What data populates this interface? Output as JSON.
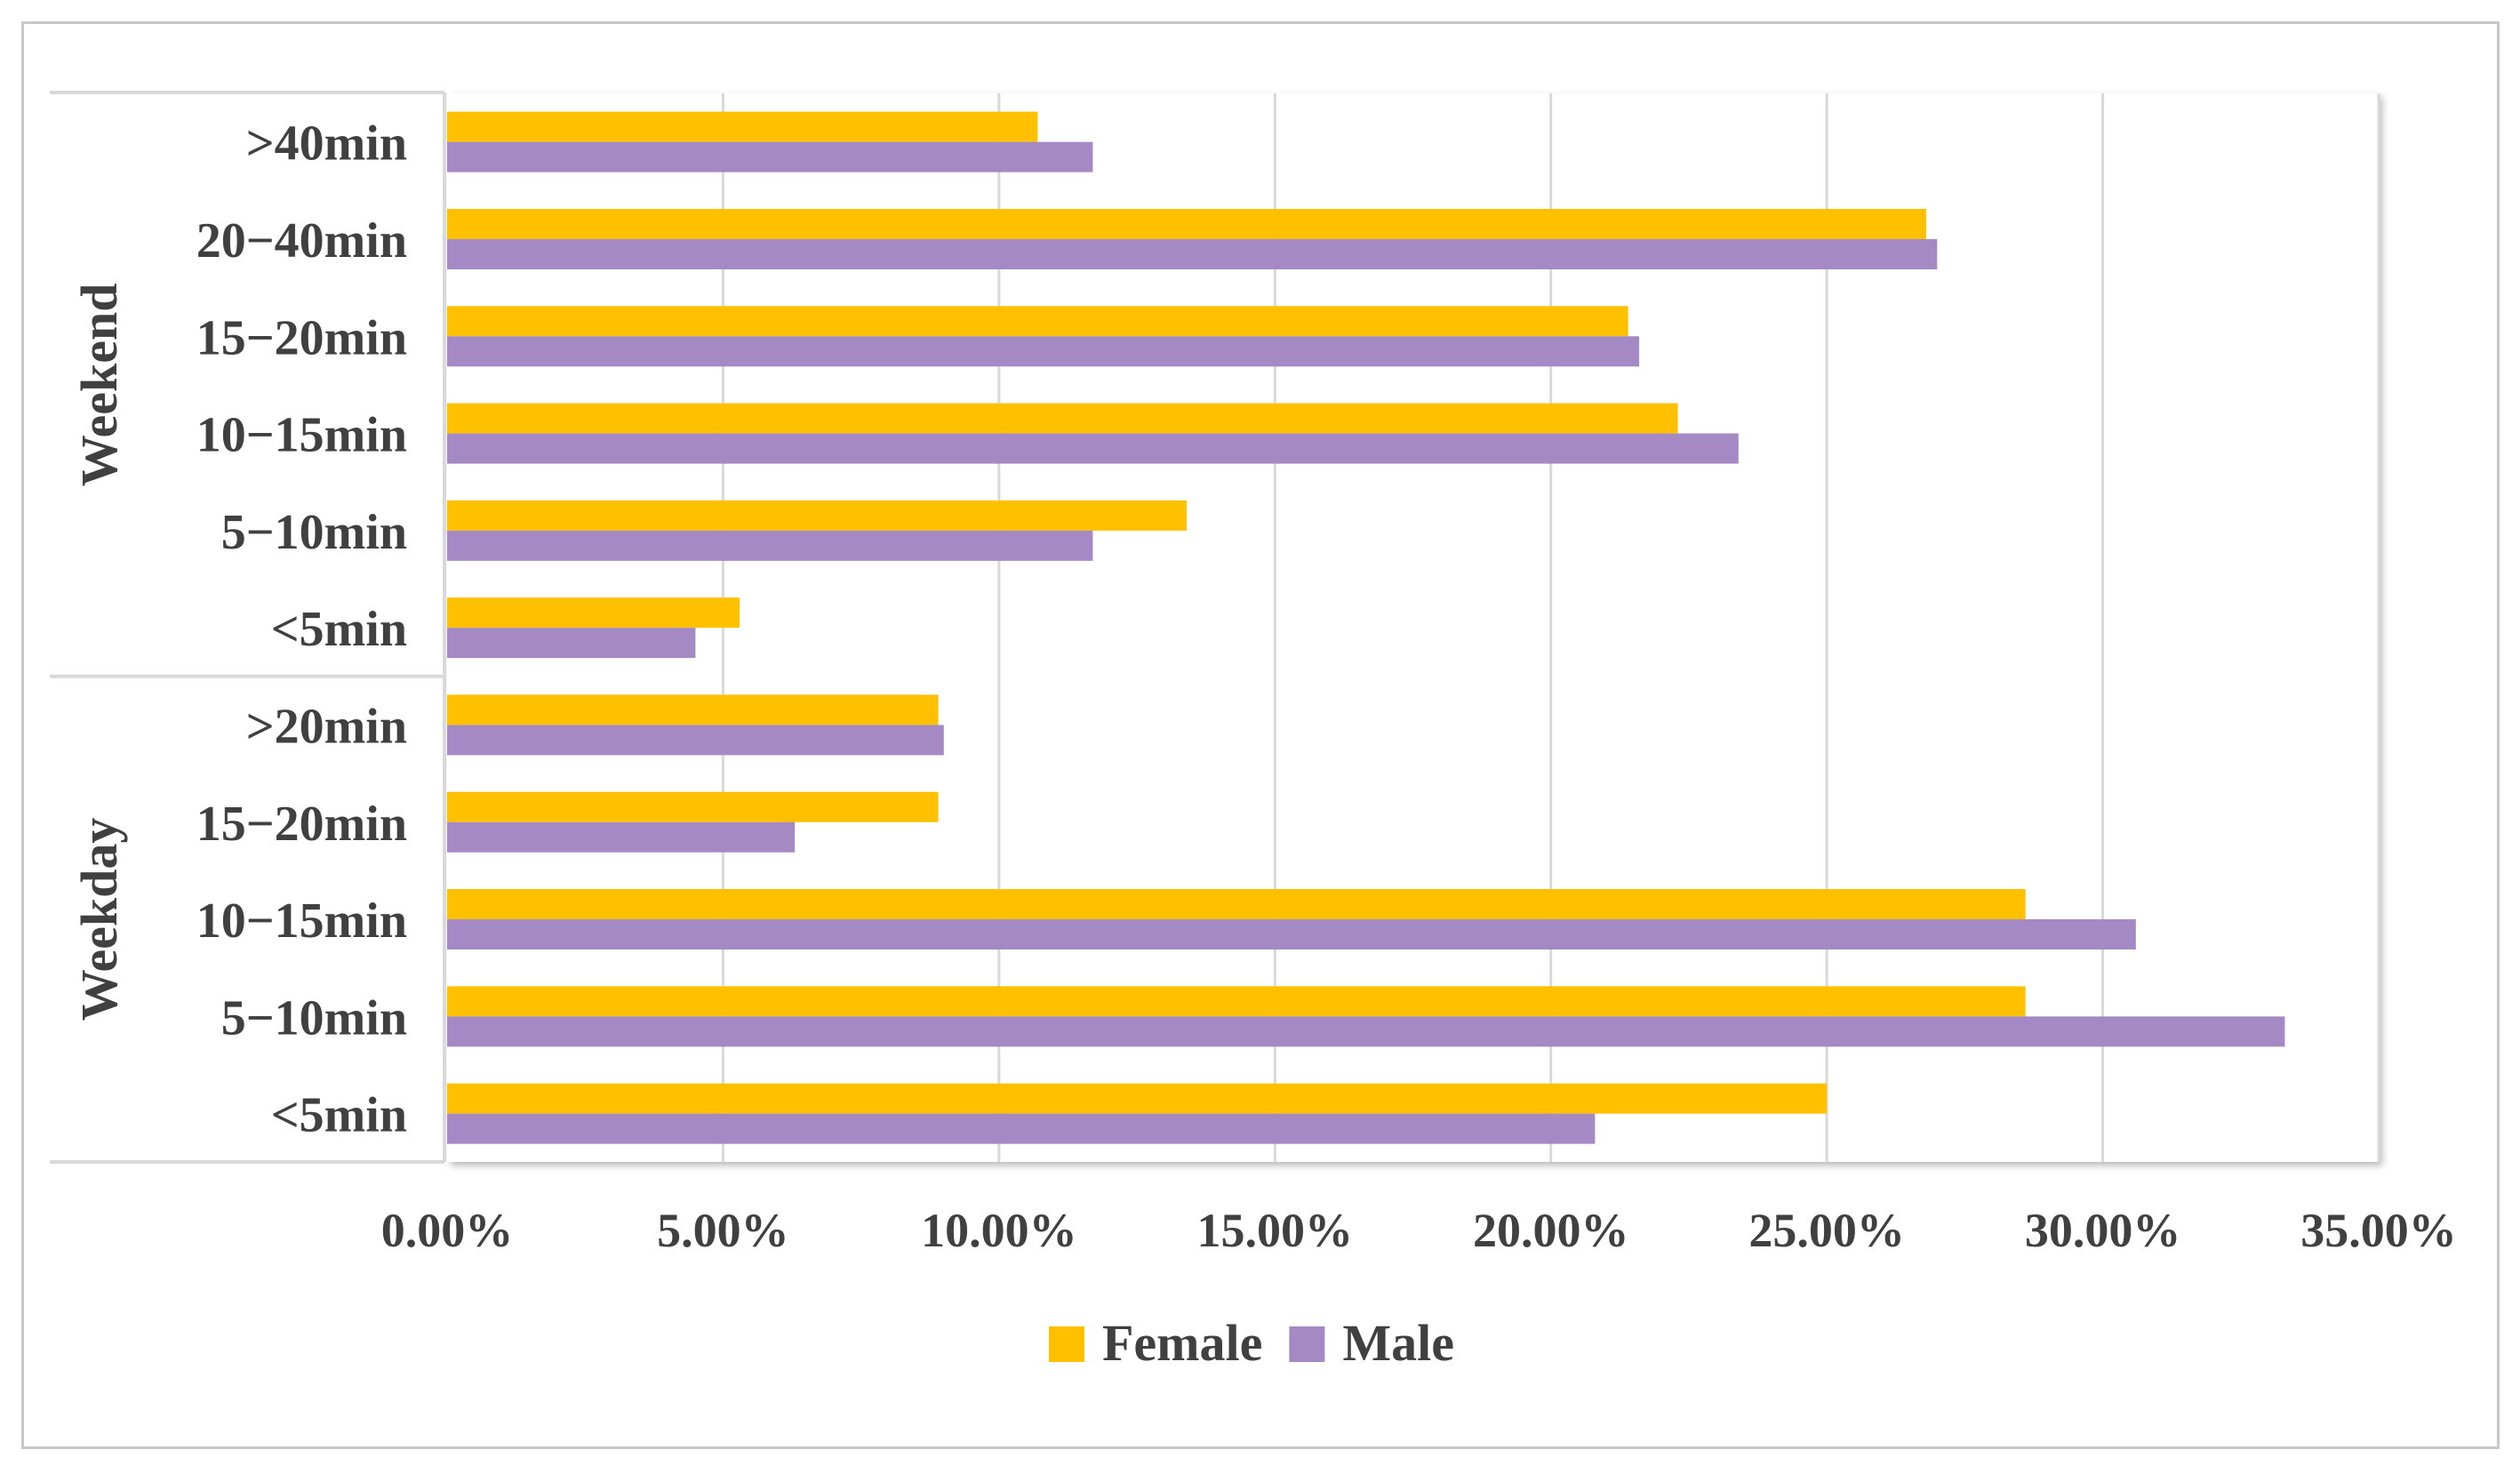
{
  "chart_data": {
    "type": "bar",
    "orientation": "horizontal",
    "title": "",
    "xlabel": "",
    "ylabel": "",
    "xlim": [
      0,
      35
    ],
    "x_ticks": [
      "0.00%",
      "5.00%",
      "10.00%",
      "15.00%",
      "20.00%",
      "25.00%",
      "30.00%",
      "35.00%"
    ],
    "x_tick_values": [
      0,
      5,
      10,
      15,
      20,
      25,
      30,
      35
    ],
    "grid": true,
    "legend_position": "bottom",
    "groups": [
      {
        "name": "Weekend",
        "categories": [
          ">40min",
          "20−40min",
          "15−20min",
          "10−15min",
          "5−10min",
          "<5min"
        ]
      },
      {
        "name": "Weekday",
        "categories": [
          ">20min",
          "15−20min",
          "10−15min",
          "5−10min",
          "<5min"
        ]
      }
    ],
    "series": [
      {
        "name": "Female",
        "color": "#ffc000",
        "values": [
          10.7,
          26.8,
          21.4,
          22.3,
          13.4,
          5.3,
          8.9,
          8.9,
          28.6,
          28.6,
          25.0
        ]
      },
      {
        "name": "Male",
        "color": "#a589c4",
        "values": [
          11.7,
          27.0,
          21.6,
          23.4,
          11.7,
          4.5,
          9.0,
          6.3,
          30.6,
          33.3,
          20.8
        ]
      }
    ]
  }
}
